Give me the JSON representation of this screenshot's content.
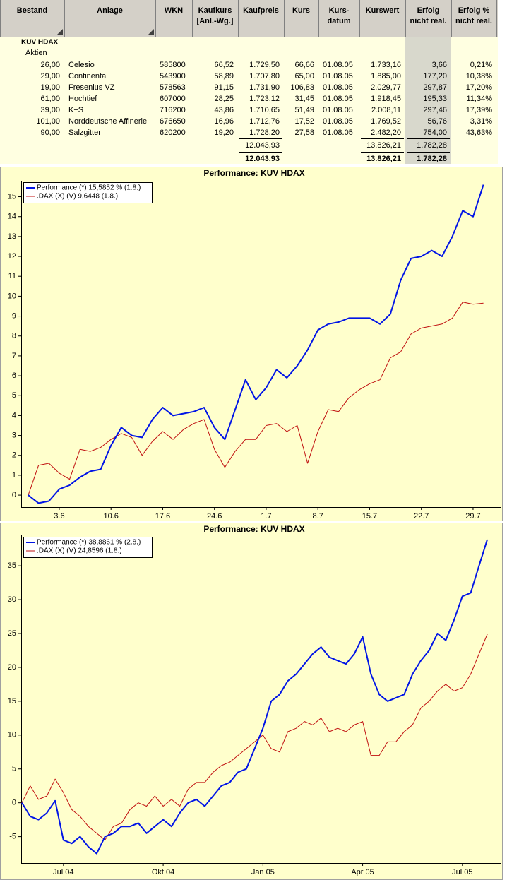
{
  "table": {
    "headers": [
      [
        "Bestand"
      ],
      [
        "Anlage"
      ],
      [
        "WKN"
      ],
      [
        "Kaufkurs",
        "[Anl.-Wg.]"
      ],
      [
        "Kaufpreis"
      ],
      [
        "Kurs"
      ],
      [
        "Kurs-",
        "datum"
      ],
      [
        "Kurswert"
      ],
      [
        "Erfolg",
        "nicht real."
      ],
      [
        "Erfolg %",
        "nicht real."
      ]
    ],
    "group": "KUV HDAX",
    "subgroup": "Aktien",
    "rows": [
      [
        "26,00",
        "Celesio",
        "585800",
        "66,52",
        "1.729,50",
        "66,66",
        "01.08.05",
        "1.733,16",
        "3,66",
        "0,21%"
      ],
      [
        "29,00",
        "Continental",
        "543900",
        "58,89",
        "1.707,80",
        "65,00",
        "01.08.05",
        "1.885,00",
        "177,20",
        "10,38%"
      ],
      [
        "19,00",
        "Fresenius VZ",
        "578563",
        "91,15",
        "1.731,90",
        "106,83",
        "01.08.05",
        "2.029,77",
        "297,87",
        "17,20%"
      ],
      [
        "61,00",
        "Hochtief",
        "607000",
        "28,25",
        "1.723,12",
        "31,45",
        "01.08.05",
        "1.918,45",
        "195,33",
        "11,34%"
      ],
      [
        "39,00",
        "K+S",
        "716200",
        "43,86",
        "1.710,65",
        "51,49",
        "01.08.05",
        "2.008,11",
        "297,46",
        "17,39%"
      ],
      [
        "101,00",
        "Norddeutsche Affinerie",
        "676650",
        "16,96",
        "1.712,76",
        "17,52",
        "01.08.05",
        "1.769,52",
        "56,76",
        "3,31%"
      ],
      [
        "90,00",
        "Salzgitter",
        "620200",
        "19,20",
        "1.728,20",
        "27,58",
        "01.08.05",
        "2.482,20",
        "754,00",
        "43,63%"
      ]
    ],
    "subtotal": {
      "kaufpreis": "12.043,93",
      "kurswert": "13.826,21",
      "erfolg": "1.782,28"
    },
    "total": {
      "kaufpreis": "12.043,93",
      "kurswert": "13.826,21",
      "erfolg": "1.782,28"
    }
  },
  "chart_data": [
    {
      "type": "line",
      "title": "Performance: KUV HDAX",
      "categories": [
        null,
        null,
        null,
        "3.6",
        null,
        null,
        null,
        null,
        "10.6",
        null,
        null,
        null,
        null,
        "17.6",
        null,
        null,
        null,
        null,
        "24.6",
        null,
        null,
        null,
        null,
        "1.7",
        null,
        null,
        null,
        null,
        "8.7",
        null,
        null,
        null,
        null,
        "15.7",
        null,
        null,
        null,
        null,
        "22.7",
        null,
        null,
        null,
        null,
        "29.7",
        null
      ],
      "series": [
        {
          "name": "Performance (*) 15,5852 % (1.8.)",
          "color": "#0014e6",
          "values": [
            0,
            -0.4,
            -0.3,
            0.3,
            0.5,
            0.9,
            1.2,
            1.3,
            2.5,
            3.4,
            3.0,
            2.9,
            3.8,
            4.4,
            4.0,
            4.1,
            4.2,
            4.4,
            3.4,
            2.8,
            4.3,
            5.8,
            4.8,
            5.4,
            6.3,
            5.9,
            6.5,
            7.3,
            8.3,
            8.6,
            8.7,
            8.9,
            8.9,
            8.9,
            8.6,
            9.1,
            10.8,
            11.9,
            12.0,
            12.3,
            12.0,
            13.0,
            14.3,
            14.0,
            15.6
          ]
        },
        {
          "name": ".DAX (X) (V) 9,6448 (1.8.)",
          "color": "#c01010",
          "values": [
            0,
            1.5,
            1.6,
            1.1,
            0.8,
            2.3,
            2.2,
            2.4,
            2.8,
            3.1,
            2.9,
            2.0,
            2.7,
            3.2,
            2.8,
            3.3,
            3.6,
            3.8,
            2.3,
            1.4,
            2.2,
            2.8,
            2.8,
            3.5,
            3.6,
            3.2,
            3.5,
            1.6,
            3.2,
            4.3,
            4.2,
            4.9,
            5.3,
            5.6,
            5.8,
            6.9,
            7.2,
            8.1,
            8.4,
            8.5,
            8.6,
            8.9,
            9.7,
            9.6,
            9.65
          ]
        }
      ],
      "ylim": [
        -0.6,
        15.8
      ],
      "yticks": [
        0,
        1,
        2,
        3,
        4,
        5,
        6,
        7,
        8,
        9,
        10,
        11,
        12,
        13,
        14,
        15
      ],
      "legend": "top-left"
    },
    {
      "type": "line",
      "title": "Performance: KUV HDAX",
      "categories": [
        null,
        null,
        null,
        null,
        null,
        "Jul 04",
        null,
        null,
        null,
        null,
        null,
        null,
        null,
        null,
        null,
        null,
        null,
        "Okt 04",
        null,
        null,
        null,
        null,
        null,
        null,
        null,
        null,
        null,
        null,
        null,
        "Jan 05",
        null,
        null,
        null,
        null,
        null,
        null,
        null,
        null,
        null,
        null,
        null,
        "Apr 05",
        null,
        null,
        null,
        null,
        null,
        null,
        null,
        null,
        null,
        null,
        null,
        "Jul 05",
        null,
        null,
        null
      ],
      "series": [
        {
          "name": "Performance (*) 38,8861 % (2.8.)",
          "color": "#0014e6",
          "values": [
            0,
            -2,
            -2.5,
            -1.5,
            0.3,
            -5.5,
            -6,
            -5,
            -6.5,
            -7.5,
            -5,
            -4.5,
            -3.5,
            -3.5,
            -3,
            -4.5,
            -3.5,
            -2.5,
            -3.5,
            -1.5,
            0,
            0.5,
            -0.5,
            1,
            2.5,
            3,
            4.5,
            5,
            8,
            11,
            15,
            16,
            18,
            19,
            20.5,
            22,
            23,
            21.5,
            21,
            20.5,
            22,
            24.5,
            19,
            16,
            15,
            15.5,
            16,
            19,
            21,
            22.5,
            25,
            24,
            27,
            30.5,
            31,
            35,
            38.9
          ]
        },
        {
          "name": ".DAX (X) (V) 24,8596 (1.8.)",
          "color": "#c01010",
          "values": [
            0,
            2.5,
            0.5,
            1,
            3.5,
            1.5,
            -1,
            -2,
            -3.5,
            -4.5,
            -5.5,
            -3.5,
            -3,
            -1,
            0,
            -0.5,
            1,
            -0.5,
            0.5,
            -0.5,
            2,
            3,
            3,
            4.5,
            5.5,
            6,
            7,
            8,
            9,
            10,
            8,
            7.5,
            10.5,
            11,
            12,
            11.5,
            12.5,
            10.5,
            11,
            10.5,
            11.5,
            12,
            7,
            7,
            9,
            9,
            10.5,
            11.5,
            14,
            15,
            16.5,
            17.5,
            16.5,
            17,
            19,
            22,
            24.9
          ]
        }
      ],
      "ylim": [
        -8.9,
        39.5
      ],
      "yticks": [
        -5,
        0,
        5,
        10,
        15,
        20,
        25,
        30,
        35
      ],
      "legend": "top-left"
    }
  ]
}
